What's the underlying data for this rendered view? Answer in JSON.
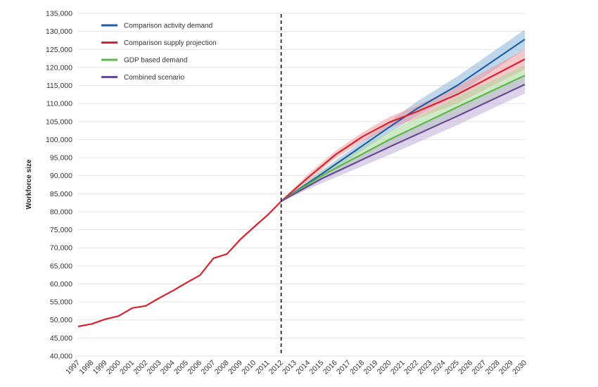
{
  "chart_data": {
    "type": "line",
    "title": "",
    "xlabel": "",
    "ylabel": "Workforce size",
    "ylim": [
      40000,
      135000
    ],
    "y_ticks": [
      "40,000",
      "45,000",
      "50,000",
      "55,000",
      "60,000",
      "65,000",
      "70,000",
      "75,000",
      "80,000",
      "85,000",
      "90,000",
      "95,000",
      "100,000",
      "105,000",
      "110,000",
      "115,000",
      "120,000",
      "125,000",
      "130,000",
      "135,000"
    ],
    "categories": [
      "1997",
      "1998",
      "1999",
      "2000",
      "2001",
      "2002",
      "2003",
      "2004",
      "2005",
      "2006",
      "2007",
      "2008",
      "2009",
      "2010",
      "2011",
      "2012",
      "2013",
      "2014",
      "2015",
      "2016",
      "2017",
      "2018",
      "2019",
      "2020",
      "2021",
      "2022",
      "2023",
      "2024",
      "2025",
      "2026",
      "2027",
      "2028",
      "2029",
      "2030"
    ],
    "grid": true,
    "legend_position": "top-left",
    "divider_year": "2012",
    "historical": {
      "color": "#d7232f",
      "x": [
        "1997",
        "1998",
        "1999",
        "2000",
        "2001",
        "2002",
        "2003",
        "2004",
        "2005",
        "2006",
        "2007",
        "2008",
        "2009",
        "2010",
        "2011",
        "2012"
      ],
      "values": [
        48200,
        48900,
        50200,
        51100,
        53300,
        53900,
        56100,
        58100,
        60300,
        62400,
        67100,
        68300,
        72400,
        75800,
        79100,
        82900
      ]
    },
    "series": [
      {
        "name": "Comparison activity demand",
        "color": "#1f5fa6",
        "band_color": "#8db4da",
        "x": [
          "2012",
          "2015",
          "2020",
          "2022",
          "2025",
          "2030"
        ],
        "values": [
          82900,
          90500,
          103500,
          108500,
          115000,
          127800
        ],
        "lower": [
          82900,
          89500,
          102000,
          106500,
          112500,
          125000
        ],
        "upper": [
          82900,
          91500,
          105000,
          110500,
          117500,
          130500
        ]
      },
      {
        "name": "Comparison supply projection",
        "color": "#d7232f",
        "band_color": "#ef9a9e",
        "x": [
          "2012",
          "2014",
          "2016",
          "2018",
          "2020",
          "2022",
          "2025",
          "2030"
        ],
        "values": [
          82900,
          89500,
          95800,
          100800,
          104800,
          107700,
          112500,
          122300
        ],
        "lower": [
          82900,
          88500,
          94800,
          99500,
          103200,
          105800,
          110000,
          119500
        ],
        "upper": [
          82900,
          90500,
          96800,
          102000,
          106300,
          109400,
          114800,
          125000
        ]
      },
      {
        "name": "GDP based demand",
        "color": "#5cb848",
        "band_color": "#a9d89b",
        "x": [
          "2012",
          "2015",
          "2020",
          "2025",
          "2030"
        ],
        "values": [
          82900,
          90000,
          100000,
          109000,
          117800
        ],
        "lower": [
          82900,
          88700,
          97800,
          106300,
          115000
        ],
        "upper": [
          82900,
          91300,
          102200,
          111800,
          120600
        ]
      },
      {
        "name": "Combined scenario",
        "color": "#6a4a97",
        "band_color": "#bfaedb",
        "x": [
          "2012",
          "2015",
          "2020",
          "2025",
          "2030"
        ],
        "values": [
          82900,
          89200,
          98000,
          106500,
          115300
        ],
        "lower": [
          82900,
          87900,
          95800,
          104000,
          112800
        ],
        "upper": [
          82900,
          90400,
          100200,
          109000,
          117800
        ]
      }
    ]
  }
}
